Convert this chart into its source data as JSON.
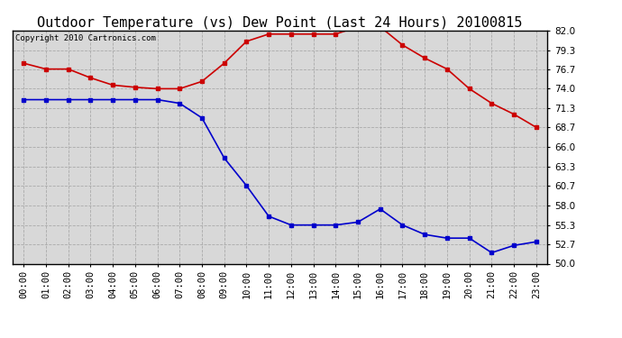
{
  "title": "Outdoor Temperature (vs) Dew Point (Last 24 Hours) 20100815",
  "copyright_text": "Copyright 2010 Cartronics.com",
  "x_labels": [
    "00:00",
    "01:00",
    "02:00",
    "03:00",
    "04:00",
    "05:00",
    "06:00",
    "07:00",
    "08:00",
    "09:00",
    "10:00",
    "11:00",
    "12:00",
    "13:00",
    "14:00",
    "15:00",
    "16:00",
    "17:00",
    "18:00",
    "19:00",
    "20:00",
    "21:00",
    "22:00",
    "23:00"
  ],
  "temp_data": [
    77.5,
    76.7,
    76.7,
    75.5,
    74.5,
    74.2,
    74.0,
    74.0,
    75.0,
    77.5,
    80.5,
    81.5,
    81.5,
    81.5,
    81.5,
    82.5,
    82.5,
    80.0,
    78.2,
    76.7,
    74.0,
    72.0,
    70.5,
    68.7
  ],
  "dew_data": [
    72.5,
    72.5,
    72.5,
    72.5,
    72.5,
    72.5,
    72.5,
    72.0,
    70.0,
    64.5,
    60.7,
    56.5,
    55.3,
    55.3,
    55.3,
    55.7,
    57.5,
    55.3,
    54.0,
    53.5,
    53.5,
    51.5,
    52.5,
    53.0
  ],
  "temp_color": "#cc0000",
  "dew_color": "#0000cc",
  "bg_color": "#ffffff",
  "plot_bg_color": "#d8d8d8",
  "grid_color": "#aaaaaa",
  "ylim": [
    50.0,
    82.0
  ],
  "yticks": [
    50.0,
    52.7,
    55.3,
    58.0,
    60.7,
    63.3,
    66.0,
    68.7,
    71.3,
    74.0,
    76.7,
    79.3,
    82.0
  ],
  "title_fontsize": 11,
  "copyright_fontsize": 6.5,
  "tick_fontsize": 7.5,
  "marker": "s",
  "markersize": 3,
  "linewidth": 1.2
}
